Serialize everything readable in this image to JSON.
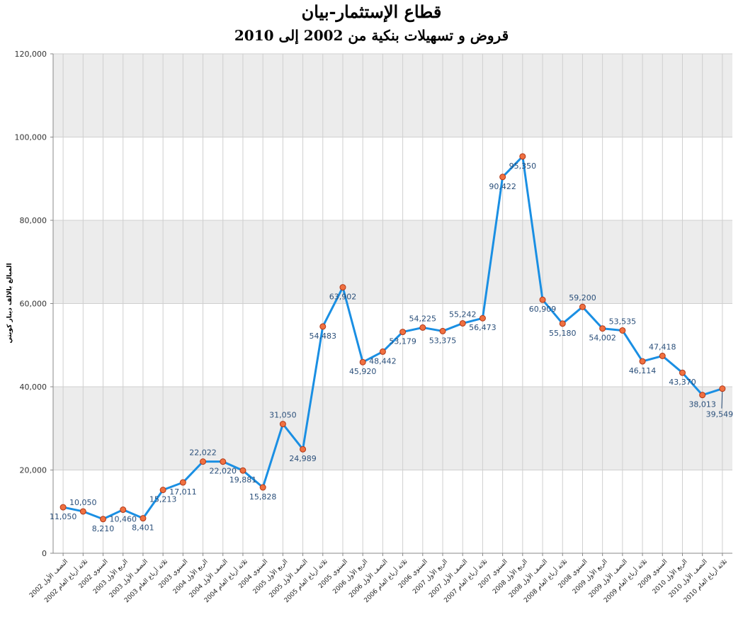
{
  "chart_data": {
    "type": "line",
    "title": "قطاع الإستثمار-بيان",
    "subtitle": "قروض و تسهيلات بنكية من 2002 إلى 2010",
    "ylabel": "المبالغ بالالف دينار كويتي",
    "xlabel": "",
    "ylim": [
      0,
      120000
    ],
    "yticks": [
      "0",
      "20,000",
      "40,000",
      "60,000",
      "80,000",
      "100,000",
      "120,000"
    ],
    "grid": true,
    "legend": "none",
    "colors": {
      "line": "#1a8fe3",
      "marker_fill": "#f07040",
      "marker_stroke": "#b03818",
      "band": "#ececec",
      "grid": "#cfcfcf",
      "label": "#2a4f7a"
    },
    "categories": [
      "النصف الأول 2002",
      "ثلاثة أرباع العام 2002",
      "السنوي 2002",
      "الربع الأول 2003",
      "النصف الأول 2003",
      "ثلاثة أرباع العام 2003",
      "السنوي 2003",
      "الربع الأول 2004",
      "النصف الأول 2004",
      "ثلاثة أرباع العام 2004",
      "السنوي 2004",
      "الربع الأول 2005",
      "النصف الأول 2005",
      "ثلاثة أرباع العام 2005",
      "السنوي 2005",
      "الربع الأول 2006",
      "النصف الأول 2006",
      "ثلاثة أرباع العام 2006",
      "السنوي 2006",
      "الربع الأول 2007",
      "النصف الأول 2007",
      "ثلاثة أرباع العام 2007",
      "السنوي 2007",
      "الربع الأول 2008",
      "النصف الأول 2008",
      "ثلاثة أرباع العام 2008",
      "السنوي 2008",
      "الربع الأول 2009",
      "النصف الأول 2009",
      "ثلاثة أرباع العام 2009",
      "السنوي 2009",
      "الربع الأول 2010",
      "النصف الأول 2010",
      "ثلاثة أرباع العام 2010"
    ],
    "values": [
      11050,
      10050,
      8210,
      10460,
      8401,
      15213,
      17011,
      22022,
      22020,
      19881,
      15828,
      31050,
      24989,
      54483,
      63902,
      45920,
      48442,
      53179,
      54225,
      53375,
      55242,
      56473,
      90422,
      95350,
      60909,
      55180,
      59200,
      54002,
      53535,
      46114,
      47418,
      43370,
      38013,
      39549
    ],
    "value_labels": [
      "11,050",
      "10,050",
      "8,210",
      "10,460",
      "8,401",
      "15,213",
      "17,011",
      "22,022",
      "22,020",
      "19,881",
      "15,828",
      "31,050",
      "24,989",
      "54,483",
      "63,902",
      "45,920",
      "48,442",
      "53,179",
      "54,225",
      "53,375",
      "55,242",
      "56,473",
      "90,422",
      "95,350",
      "60,909",
      "55,180",
      "59,200",
      "54,002",
      "53,535",
      "46,114",
      "47,418",
      "43,370",
      "38,013",
      "39,549"
    ]
  }
}
